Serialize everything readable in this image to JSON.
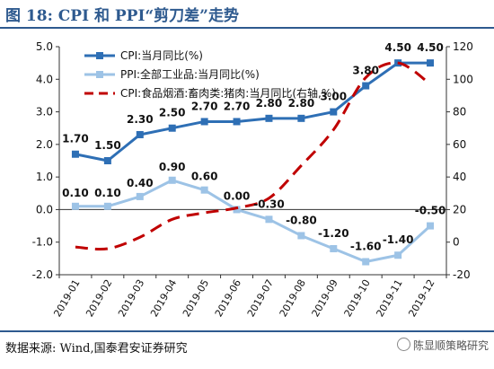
{
  "header": {
    "title": "图 18:  CPI 和 PPI“剪刀差”走势"
  },
  "footer": {
    "source": "数据来源:  Wind,国泰君安证券研究",
    "watermark": "陈显顺策略研究"
  },
  "chart_data": {
    "type": "line",
    "categories": [
      "2019-01",
      "2019-02",
      "2019-03",
      "2019-04",
      "2019-05",
      "2019-06",
      "2019-07",
      "2019-08",
      "2019-09",
      "2019-10",
      "2019-11",
      "2019-12"
    ],
    "ylim_left": [
      -2.0,
      5.0
    ],
    "ylim_right": [
      -20,
      120
    ],
    "left_ticks": [
      "5.0",
      "4.0",
      "3.0",
      "2.0",
      "1.0",
      "0.0",
      "-1.0",
      "-2.0"
    ],
    "right_ticks": [
      "120",
      "100",
      "80",
      "60",
      "40",
      "20",
      "0",
      "-20"
    ],
    "grid": false,
    "legend_position": "top-left",
    "series": [
      {
        "name": "CPI:当月同比(%)",
        "axis": "left",
        "color": "#2e6fb5",
        "marker": "square",
        "dash": false,
        "values": [
          1.7,
          1.5,
          2.3,
          2.5,
          2.7,
          2.7,
          2.8,
          2.8,
          3.0,
          3.8,
          4.5,
          4.5
        ],
        "labels": [
          "1.70",
          "1.50",
          "2.30",
          "2.50",
          "2.70",
          "2.70",
          "2.80",
          "2.80",
          "3.00",
          "3.80",
          "4.50",
          "4.50"
        ]
      },
      {
        "name": "PPI:全部工业品:当月同比(%)",
        "axis": "left",
        "color": "#9dc3e6",
        "marker": "square",
        "dash": false,
        "values": [
          0.1,
          0.1,
          0.4,
          0.9,
          0.6,
          0.0,
          -0.3,
          -0.8,
          -1.2,
          -1.6,
          -1.4,
          -0.5
        ],
        "labels": [
          "0.10",
          "0.10",
          "0.40",
          "0.90",
          "0.60",
          "0.00",
          "-0.30",
          "-0.80",
          "-1.20",
          "-1.60",
          "-1.40",
          "-0.50"
        ]
      },
      {
        "name": "CPI:食品烟酒:畜肉类:猪肉:当月同比(右轴,%)",
        "axis": "right",
        "color": "#c00000",
        "marker": "none",
        "dash": true,
        "values": [
          -3,
          -4,
          3,
          14,
          18,
          21,
          27,
          47,
          69,
          101,
          110,
          97
        ]
      }
    ]
  }
}
